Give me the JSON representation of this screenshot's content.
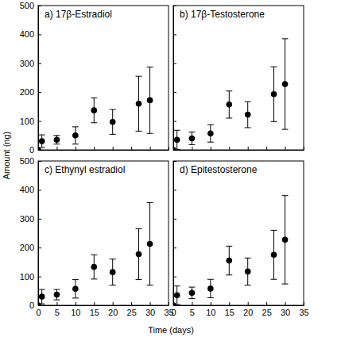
{
  "chart_data": [
    {
      "type": "scatter",
      "title": "a) 17β-Estradiol",
      "x": [
        0,
        1,
        5,
        10,
        15,
        20,
        27,
        30
      ],
      "values": [
        0,
        30,
        35,
        50,
        137,
        97,
        160,
        172
      ],
      "errors": [
        0,
        22,
        15,
        30,
        43,
        43,
        95,
        115
      ],
      "color": "#000000",
      "marker": "circle",
      "xlim": [
        0,
        35
      ],
      "ylim": [
        0,
        500
      ],
      "xticks": [
        0,
        5,
        10,
        15,
        20,
        25,
        30,
        35
      ],
      "yticks": [
        0,
        100,
        200,
        300,
        400,
        500
      ],
      "tick_labels": "y"
    },
    {
      "type": "scatter",
      "title": "b) 17β-Testosterone",
      "x": [
        0,
        1,
        5,
        10,
        15,
        20,
        27,
        30
      ],
      "values": [
        0,
        35,
        40,
        57,
        157,
        122,
        193,
        228
      ],
      "errors": [
        0,
        33,
        22,
        30,
        47,
        45,
        95,
        157
      ],
      "color": "#000000",
      "marker": "circle",
      "xlim": [
        0,
        35
      ],
      "ylim": [
        0,
        500
      ],
      "xticks": [
        0,
        5,
        10,
        15,
        20,
        25,
        30,
        35
      ],
      "yticks": [
        0,
        100,
        200,
        300,
        400,
        500
      ],
      "tick_labels": false
    },
    {
      "type": "scatter",
      "title": "c) Ethynyl estradiol",
      "x": [
        0,
        1,
        5,
        10,
        15,
        20,
        27,
        30
      ],
      "values": [
        0,
        30,
        37,
        57,
        133,
        115,
        177,
        213
      ],
      "errors": [
        0,
        25,
        18,
        32,
        42,
        45,
        88,
        143
      ],
      "color": "#000000",
      "marker": "circle",
      "xlim": [
        0,
        35
      ],
      "ylim": [
        0,
        500
      ],
      "xticks": [
        0,
        5,
        10,
        15,
        20,
        25,
        30,
        35
      ],
      "yticks": [
        0,
        100,
        200,
        300,
        400,
        500
      ]
    },
    {
      "type": "scatter",
      "title": "d) Epitestosterone",
      "x": [
        0,
        1,
        5,
        10,
        15,
        20,
        27,
        30
      ],
      "values": [
        0,
        35,
        43,
        58,
        155,
        117,
        175,
        227
      ],
      "errors": [
        0,
        32,
        20,
        32,
        50,
        47,
        85,
        153
      ],
      "color": "#000000",
      "marker": "circle",
      "xlim": [
        0,
        35
      ],
      "ylim": [
        0,
        500
      ],
      "xticks": [
        0,
        5,
        10,
        15,
        20,
        25,
        30,
        35
      ],
      "yticks": [
        0,
        100,
        200,
        300,
        400,
        500
      ],
      "tick_labels": "x"
    }
  ],
  "x_label": "Time (days)",
  "y_label": "Amount (ng)"
}
